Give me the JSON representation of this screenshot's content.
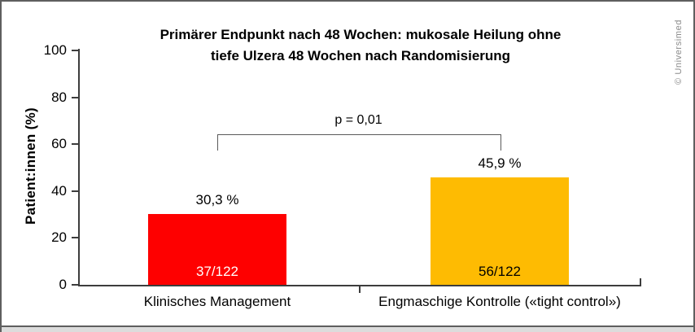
{
  "frame": {
    "copyright": "© Universimed"
  },
  "chart_data": {
    "type": "bar",
    "title_line1": "Primärer Endpunkt nach 48 Wochen: mukosale Heilung ohne",
    "title_line2": "tiefe Ulzera 48 Wochen nach Randomisierung",
    "ylabel": "Patient:innen (%)",
    "ylim": [
      0,
      100
    ],
    "yticks": [
      0,
      20,
      40,
      60,
      80,
      100
    ],
    "grid": "off",
    "legend": "none",
    "categories": [
      "Klinisches Management",
      "Engmaschige Kontrolle («tight control»)"
    ],
    "values": [
      30.3,
      45.9
    ],
    "bars": [
      {
        "label": "Klinisches Management",
        "value": 30.3,
        "value_label": "30,3 %",
        "fraction": "37/122",
        "color": "#FE0000",
        "fraction_text_color": "#ffffff"
      },
      {
        "label": "Engmaschige Kontrolle («tight control»)",
        "value": 45.9,
        "value_label": "45,9 %",
        "fraction": "56/122",
        "color": "#FEBB02",
        "fraction_text_color": "#000000"
      }
    ],
    "significance": {
      "label": "p = 0,01"
    }
  }
}
